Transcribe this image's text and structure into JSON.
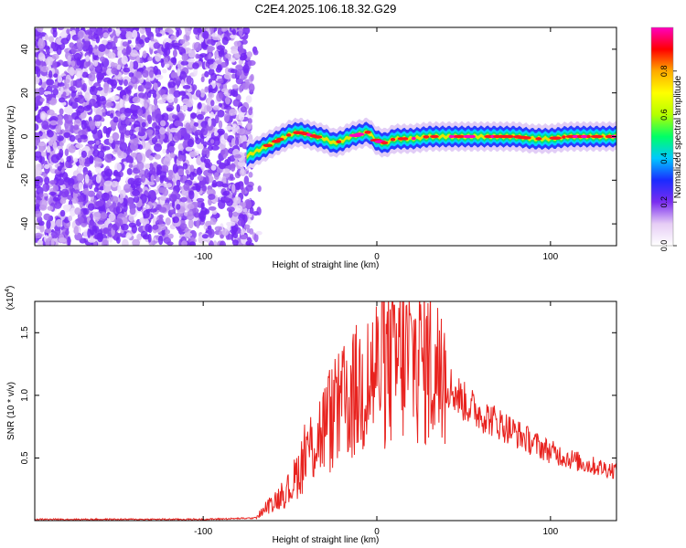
{
  "chart_data": [
    {
      "type": "heatmap",
      "title": "C2E4.2025.106.18.32.G29",
      "xlabel": "Height of straight line (km)",
      "ylabel": "Frequency (Hz)",
      "xlim": [
        -197,
        138
      ],
      "ylim": [
        -50,
        50
      ],
      "x_ticks": [
        -100,
        0,
        100
      ],
      "y_ticks": [
        -40,
        -20,
        0,
        20,
        40
      ],
      "colorbar": {
        "label": "Normalized spectral amplitude",
        "range": [
          0,
          1
        ],
        "ticks": [
          "0.0",
          "0.2",
          "0.4",
          "0.6",
          "0.8"
        ],
        "colors": [
          "#ffffff",
          "#e6cdf5",
          "#7a2df0",
          "#1a2bff",
          "#00c8ff",
          "#00ff66",
          "#b4ff00",
          "#ffff00",
          "#ffaa00",
          "#ff0000",
          "#ff00c0"
        ]
      },
      "noise_region": {
        "x_range": [
          -197,
          -72
        ],
        "y_range": [
          -50,
          50
        ]
      },
      "ridge": {
        "description_units": "km vs Hz",
        "x": [
          -75,
          -70,
          -65,
          -60,
          -55,
          -50,
          -45,
          -40,
          -35,
          -30,
          -25,
          -20,
          -15,
          -10,
          -5,
          0,
          5,
          10,
          20,
          30,
          40,
          50,
          60,
          70,
          80,
          90,
          100,
          110,
          120,
          130,
          137
        ],
        "y": [
          -9,
          -7,
          -5,
          -3,
          -1,
          1,
          2,
          1,
          0,
          -1,
          -3,
          -2,
          0,
          1,
          2,
          -2,
          -3,
          -1,
          -1,
          0,
          0,
          0,
          0,
          0,
          0,
          -1,
          -1,
          0,
          0,
          0,
          0
        ]
      }
    },
    {
      "type": "line",
      "xlabel": "Height of straight line (km)",
      "ylabel": "SNR (10 * v/v)",
      "exponent_label": "(x10",
      "exponent_power": "4",
      "exponent_close": ")",
      "xlim": [
        -197,
        138
      ],
      "ylim": [
        0,
        1.75
      ],
      "x_ticks": [
        -100,
        0,
        100
      ],
      "y_ticks": [
        "0.5",
        "1.0",
        "1.5"
      ],
      "color": "#e8221e",
      "envelope": {
        "x": [
          -197,
          -150,
          -100,
          -70,
          -60,
          -50,
          -45,
          -40,
          -30,
          -20,
          -10,
          0,
          10,
          20,
          30,
          40,
          50,
          60,
          70,
          80,
          90,
          100,
          110,
          120,
          130,
          138
        ],
        "y": [
          0.01,
          0.01,
          0.01,
          0.02,
          0.15,
          0.25,
          0.4,
          0.55,
          0.75,
          0.9,
          1.05,
          1.2,
          1.25,
          1.3,
          1.25,
          1.1,
          0.95,
          0.85,
          0.78,
          0.7,
          0.62,
          0.55,
          0.5,
          0.45,
          0.42,
          0.4
        ]
      },
      "peak": {
        "x": 10,
        "y": 1.72
      }
    }
  ]
}
